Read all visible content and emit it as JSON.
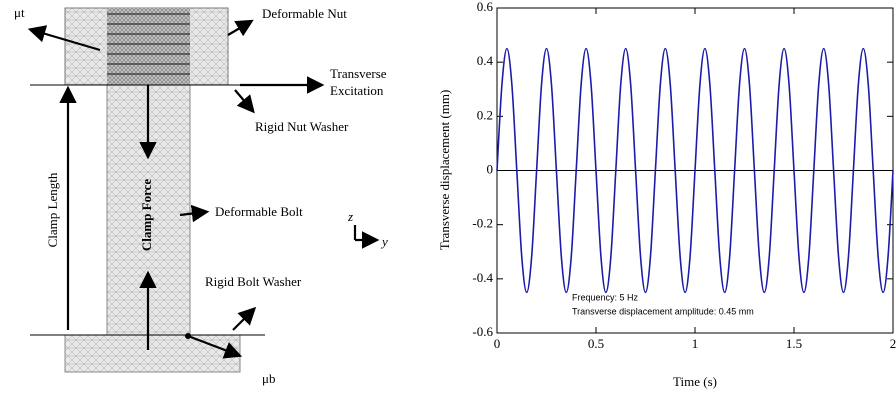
{
  "diagram": {
    "labels": {
      "mu_t": "μt",
      "deformable_nut": "Deformable  Nut",
      "transverse": "Transverse",
      "excitation": "Excitation",
      "rigid_nut_washer": "Rigid  Nut Washer",
      "clamp_length": "Clamp Length",
      "clamp_force": "Clamp Force",
      "deformable_bolt": "Deformable  Bolt",
      "axis_z": "z",
      "axis_y": "y",
      "rigid_bolt_washer": "Rigid  Bolt Washer",
      "mu_b": "μb"
    }
  },
  "chart_data": {
    "type": "line",
    "xlabel": "Time (s)",
    "ylabel": "Transverse displacement (mm)",
    "annotations": [
      "Frequency: 5 Hz",
      "Transverse displacement amplitude:  0.45 mm"
    ],
    "xlim": [
      0,
      2
    ],
    "xticks": [
      0,
      0.5,
      1,
      1.5,
      2
    ],
    "ylim": [
      -0.6,
      0.6
    ],
    "yticks": [
      0.6,
      0.4,
      0.2,
      0,
      -0.2,
      -0.4,
      -0.6
    ],
    "x": [
      0,
      0.025,
      0.05,
      0.075,
      0.1,
      0.125,
      0.15,
      0.175,
      0.2,
      0.225,
      0.25,
      0.275,
      0.3,
      0.325,
      0.35,
      0.375,
      0.4,
      0.425,
      0.45,
      0.475,
      0.5,
      0.525,
      0.55,
      0.575,
      0.6,
      0.625,
      0.65,
      0.675,
      0.7,
      0.725,
      0.75,
      0.775,
      0.8,
      0.825,
      0.85,
      0.875,
      0.9,
      0.925,
      0.95,
      0.975,
      1,
      1.025,
      1.05,
      1.075,
      1.1,
      1.125,
      1.15,
      1.175,
      1.2,
      1.225,
      1.25,
      1.275,
      1.3,
      1.325,
      1.35,
      1.375,
      1.4,
      1.425,
      1.45,
      1.475,
      1.5,
      1.525,
      1.55,
      1.575,
      1.6,
      1.625,
      1.65,
      1.675,
      1.7,
      1.725,
      1.75,
      1.775,
      1.8,
      1.825,
      1.85,
      1.875,
      1.9,
      1.925,
      1.95,
      1.975,
      2
    ],
    "series": [
      {
        "color": "#1c1ca8",
        "values": [
          0,
          0.3182,
          0.45,
          0.3182,
          0,
          -0.3182,
          -0.45,
          -0.3182,
          0,
          0.3182,
          0.45,
          0.3182,
          0,
          -0.3182,
          -0.45,
          -0.3182,
          0,
          0.3182,
          0.45,
          0.3182,
          0,
          -0.3182,
          -0.45,
          -0.3182,
          0,
          0.3182,
          0.45,
          0.3182,
          0,
          -0.3182,
          -0.45,
          -0.3182,
          0,
          0.3182,
          0.45,
          0.3182,
          0,
          -0.3182,
          -0.45,
          -0.3182,
          0,
          0.3182,
          0.45,
          0.3182,
          0,
          -0.3182,
          -0.45,
          -0.3182,
          0,
          0.3182,
          0.45,
          0.3182,
          0,
          -0.3182,
          -0.45,
          -0.3182,
          0,
          0.3182,
          0.45,
          0.3182,
          0,
          -0.3182,
          -0.45,
          -0.3182,
          0,
          0.3182,
          0.45,
          0.3182,
          0,
          -0.3182,
          -0.45,
          -0.3182,
          0,
          0.3182,
          0.45,
          0.3182,
          0,
          -0.3182,
          -0.45,
          -0.3182,
          0
        ]
      }
    ]
  }
}
